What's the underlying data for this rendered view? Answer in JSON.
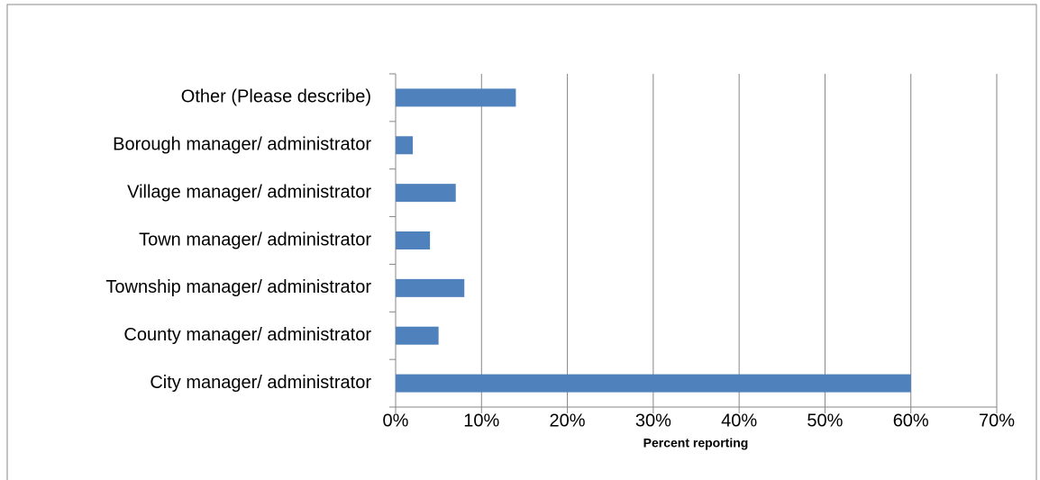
{
  "chart_data": {
    "type": "bar",
    "orientation": "horizontal",
    "x_label": "Percent reporting",
    "categories": [
      "Other (Please describe)",
      "Borough manager/ administrator",
      "Village manager/ administrator",
      "Town manager/ administrator",
      "Township manager/ administrator",
      "County manager/ administrator",
      "City manager/ administrator"
    ],
    "values": [
      14,
      2,
      7,
      4,
      8,
      5,
      60
    ],
    "color": "#4f81bd",
    "xlim": [
      0,
      70
    ],
    "xticks": [
      {
        "value": 0,
        "label": "0%"
      },
      {
        "value": 10,
        "label": "10%"
      },
      {
        "value": 20,
        "label": "20%"
      },
      {
        "value": 30,
        "label": "30%"
      },
      {
        "value": 40,
        "label": "40%"
      },
      {
        "value": 50,
        "label": "50%"
      },
      {
        "value": 60,
        "label": "60%"
      },
      {
        "value": 70,
        "label": "70%"
      }
    ],
    "grid": true
  }
}
